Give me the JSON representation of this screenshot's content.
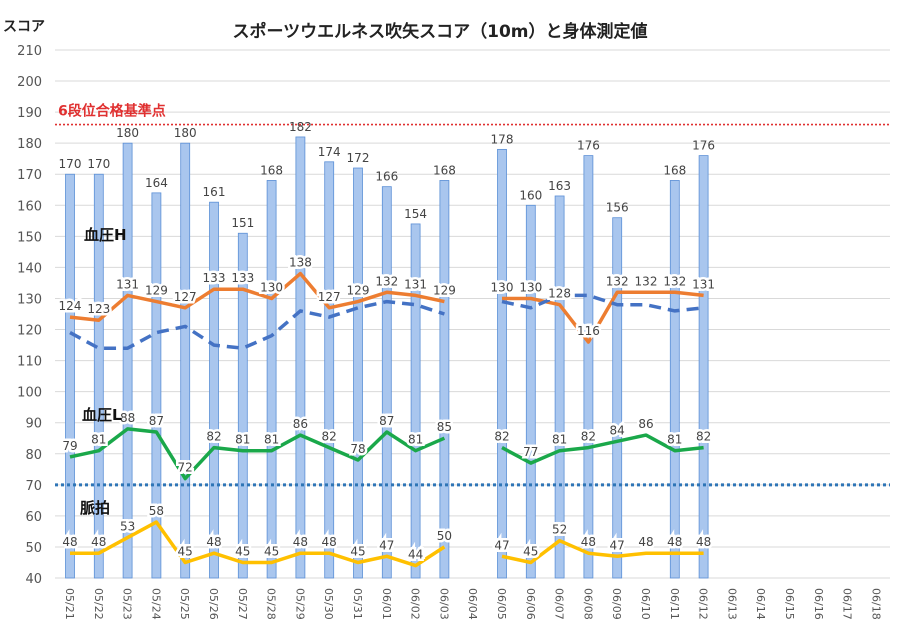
{
  "chart_data": {
    "type": "bar",
    "title": "スポーツウエルネス吹矢スコア（10m）と身体測定値",
    "ylabel": "スコア",
    "ylim": [
      40,
      210
    ],
    "yticks": [
      40,
      50,
      60,
      70,
      80,
      90,
      100,
      110,
      120,
      130,
      140,
      150,
      160,
      170,
      180,
      190,
      200,
      210
    ],
    "categories": [
      "06/18",
      "06/17",
      "06/16",
      "06/15",
      "06/14",
      "06/13",
      "06/12",
      "06/11",
      "06/10",
      "06/09",
      "06/08",
      "06/07",
      "06/06",
      "06/05",
      "06/04",
      "06/03",
      "06/02",
      "06/01",
      "05/31",
      "05/30",
      "05/29",
      "05/28",
      "05/27",
      "05/26",
      "05/25",
      "05/24",
      "05/23",
      "05/22",
      "05/21"
    ],
    "series": [
      {
        "name": "",
        "kind": "bar",
        "color": "#a9c6ee",
        "values": [
          null,
          null,
          null,
          null,
          null,
          null,
          176,
          168,
          null,
          156,
          176,
          163,
          160,
          178,
          null,
          168,
          154,
          166,
          172,
          174,
          182,
          168,
          151,
          161,
          180,
          164,
          180,
          170,
          170
        ]
      },
      {
        "name": "血圧H",
        "kind": "line",
        "color": "#ed7d31",
        "style": "solid",
        "values": [
          null,
          null,
          null,
          null,
          null,
          null,
          131,
          132,
          132,
          132,
          116,
          128,
          130,
          130,
          null,
          129,
          131,
          132,
          129,
          127,
          138,
          130,
          133,
          133,
          127,
          129,
          131,
          123,
          124
        ]
      },
      {
        "name": "",
        "kind": "line",
        "color": "#4472c4",
        "style": "dashed",
        "values": [
          null,
          null,
          null,
          null,
          null,
          null,
          127,
          126,
          128,
          128,
          131,
          131,
          127,
          129,
          null,
          125,
          128,
          129,
          127,
          124,
          126,
          118,
          114,
          115,
          121,
          119,
          114,
          114,
          119
        ]
      },
      {
        "name": "血圧L",
        "kind": "line",
        "color": "#1aa84a",
        "style": "solid",
        "values": [
          null,
          null,
          null,
          null,
          null,
          null,
          82,
          81,
          86,
          84,
          82,
          81,
          77,
          82,
          null,
          85,
          81,
          87,
          78,
          82,
          86,
          81,
          81,
          82,
          72,
          87,
          88,
          81,
          79
        ]
      },
      {
        "name": "脈拍",
        "kind": "line",
        "color": "#ffc000",
        "style": "solid",
        "values": [
          null,
          null,
          null,
          null,
          null,
          null,
          48,
          48,
          48,
          47,
          48,
          52,
          45,
          47,
          null,
          50,
          44,
          47,
          45,
          48,
          48,
          45,
          45,
          48,
          45,
          58,
          53,
          48,
          48
        ]
      }
    ],
    "reference_lines": [
      {
        "y": 186,
        "color": "#e03030",
        "label": "6段位合格基準点"
      },
      {
        "y": 70,
        "color": "#2e75b6",
        "label": ""
      }
    ],
    "annotations": [
      "血圧H",
      "血圧L",
      "脈拍"
    ],
    "grid": true,
    "legend": "none"
  }
}
